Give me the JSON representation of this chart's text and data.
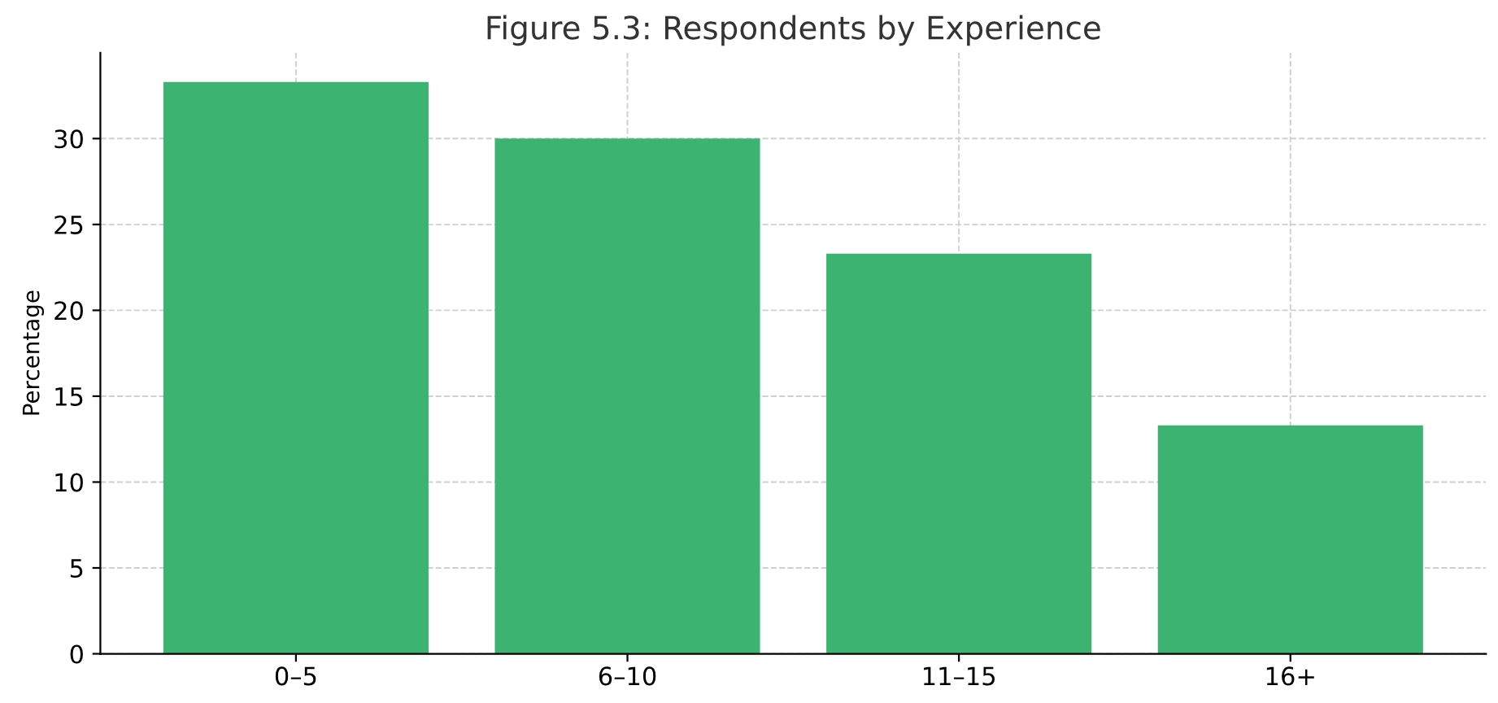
{
  "chart_data": {
    "type": "bar",
    "title": "Figure 5.3: Respondents by Experience",
    "ylabel": "Percentage",
    "categories": [
      "0–5",
      "6–10",
      "11–15",
      "16+"
    ],
    "values": [
      33.3,
      30.0,
      23.3,
      13.3
    ],
    "color": "#3cb371",
    "ylim": [
      0,
      35
    ],
    "yticks": [
      0,
      5,
      10,
      15,
      20,
      25,
      30
    ],
    "grid": true,
    "legend": false
  }
}
